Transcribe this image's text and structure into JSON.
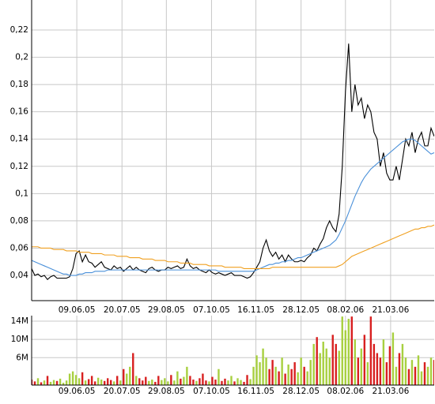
{
  "chart_data": [
    {
      "type": "line",
      "xlim": [
        0,
        127
      ],
      "xticks": [
        {
          "value": 14.25,
          "label": "09.06.05"
        },
        {
          "value": 28.5,
          "label": "20.07.05"
        },
        {
          "value": 42.5,
          "label": "29.08.05"
        },
        {
          "value": 56.75,
          "label": "07.10.05"
        },
        {
          "value": 70.75,
          "label": "16.11.05"
        },
        {
          "value": 85,
          "label": "28.12.05"
        },
        {
          "value": 99,
          "label": "08.02.06"
        },
        {
          "value": 113.25,
          "label": "21.03.06"
        }
      ],
      "ylim": [
        0.0215,
        0.242
      ],
      "yticks": [
        {
          "value": 0.04,
          "label": "0,04"
        },
        {
          "value": 0.06,
          "label": "0,06"
        },
        {
          "value": 0.08,
          "label": "0,08"
        },
        {
          "value": 0.1,
          "label": "0,1"
        },
        {
          "value": 0.12,
          "label": "0,12"
        },
        {
          "value": 0.14,
          "label": "0,14"
        },
        {
          "value": 0.16,
          "label": "0,16"
        },
        {
          "value": 0.18,
          "label": "0,18"
        },
        {
          "value": 0.2,
          "label": "0,2"
        },
        {
          "value": 0.22,
          "label": "0,22"
        }
      ],
      "grid": true,
      "series": [
        {
          "color": "#000000",
          "values": [
            0.045,
            0.04,
            0.041,
            0.039,
            0.04,
            0.037,
            0.039,
            0.04,
            0.038,
            0.038,
            0.038,
            0.038,
            0.039,
            0.045,
            0.056,
            0.058,
            0.05,
            0.055,
            0.05,
            0.049,
            0.046,
            0.048,
            0.05,
            0.046,
            0.045,
            0.044,
            0.047,
            0.045,
            0.046,
            0.043,
            0.045,
            0.047,
            0.044,
            0.046,
            0.044,
            0.043,
            0.042,
            0.045,
            0.046,
            0.044,
            0.043,
            0.044,
            0.044,
            0.046,
            0.045,
            0.046,
            0.047,
            0.045,
            0.046,
            0.052,
            0.047,
            0.045,
            0.046,
            0.044,
            0.043,
            0.042,
            0.044,
            0.042,
            0.041,
            0.042,
            0.041,
            0.04,
            0.041,
            0.042,
            0.04,
            0.04,
            0.04,
            0.039,
            0.038,
            0.039,
            0.042,
            0.046,
            0.05,
            0.06,
            0.066,
            0.058,
            0.054,
            0.057,
            0.052,
            0.055,
            0.05,
            0.055,
            0.052,
            0.05,
            0.05,
            0.051,
            0.05,
            0.053,
            0.055,
            0.06,
            0.058,
            0.063,
            0.067,
            0.075,
            0.08,
            0.075,
            0.072,
            0.085,
            0.12,
            0.175,
            0.21,
            0.16,
            0.18,
            0.165,
            0.17,
            0.155,
            0.165,
            0.16,
            0.145,
            0.14,
            0.12,
            0.13,
            0.115,
            0.11,
            0.11,
            0.12,
            0.11,
            0.125,
            0.14,
            0.135,
            0.145,
            0.13,
            0.14,
            0.145,
            0.135,
            0.135,
            0.148,
            0.142
          ]
        },
        {
          "color": "#4a90d9",
          "values": [
            0.051,
            0.05,
            0.049,
            0.048,
            0.047,
            0.046,
            0.045,
            0.044,
            0.043,
            0.042,
            0.041,
            0.041,
            0.04,
            0.04,
            0.04,
            0.041,
            0.041,
            0.042,
            0.042,
            0.042,
            0.043,
            0.043,
            0.043,
            0.043,
            0.044,
            0.044,
            0.044,
            0.044,
            0.044,
            0.044,
            0.044,
            0.044,
            0.044,
            0.044,
            0.044,
            0.044,
            0.044,
            0.044,
            0.044,
            0.044,
            0.044,
            0.044,
            0.044,
            0.044,
            0.044,
            0.044,
            0.044,
            0.044,
            0.044,
            0.044,
            0.044,
            0.044,
            0.044,
            0.044,
            0.044,
            0.044,
            0.044,
            0.044,
            0.044,
            0.043,
            0.043,
            0.043,
            0.043,
            0.043,
            0.043,
            0.043,
            0.043,
            0.043,
            0.043,
            0.043,
            0.043,
            0.044,
            0.045,
            0.046,
            0.047,
            0.048,
            0.048,
            0.049,
            0.049,
            0.05,
            0.05,
            0.051,
            0.051,
            0.052,
            0.053,
            0.053,
            0.054,
            0.055,
            0.056,
            0.057,
            0.058,
            0.059,
            0.06,
            0.061,
            0.062,
            0.064,
            0.066,
            0.07,
            0.075,
            0.08,
            0.086,
            0.092,
            0.098,
            0.103,
            0.108,
            0.112,
            0.115,
            0.118,
            0.12,
            0.122,
            0.124,
            0.126,
            0.128,
            0.13,
            0.132,
            0.134,
            0.136,
            0.138,
            0.139,
            0.14,
            0.14,
            0.139,
            0.137,
            0.135,
            0.133,
            0.131,
            0.129,
            0.13
          ]
        },
        {
          "color": "#f0a020",
          "values": [
            0.061,
            0.061,
            0.061,
            0.06,
            0.06,
            0.06,
            0.06,
            0.059,
            0.059,
            0.059,
            0.059,
            0.058,
            0.058,
            0.058,
            0.058,
            0.057,
            0.057,
            0.057,
            0.057,
            0.056,
            0.056,
            0.056,
            0.056,
            0.055,
            0.055,
            0.055,
            0.055,
            0.054,
            0.054,
            0.054,
            0.054,
            0.053,
            0.053,
            0.053,
            0.053,
            0.052,
            0.052,
            0.052,
            0.052,
            0.051,
            0.051,
            0.051,
            0.051,
            0.05,
            0.05,
            0.05,
            0.05,
            0.049,
            0.049,
            0.049,
            0.049,
            0.048,
            0.048,
            0.048,
            0.048,
            0.048,
            0.047,
            0.047,
            0.047,
            0.047,
            0.047,
            0.046,
            0.046,
            0.046,
            0.046,
            0.046,
            0.046,
            0.045,
            0.045,
            0.045,
            0.045,
            0.045,
            0.045,
            0.045,
            0.045,
            0.045,
            0.046,
            0.046,
            0.046,
            0.046,
            0.046,
            0.046,
            0.046,
            0.046,
            0.046,
            0.046,
            0.046,
            0.046,
            0.046,
            0.046,
            0.046,
            0.046,
            0.046,
            0.046,
            0.046,
            0.046,
            0.046,
            0.047,
            0.048,
            0.05,
            0.052,
            0.054,
            0.055,
            0.056,
            0.057,
            0.058,
            0.059,
            0.06,
            0.061,
            0.062,
            0.063,
            0.064,
            0.065,
            0.066,
            0.067,
            0.068,
            0.069,
            0.07,
            0.071,
            0.072,
            0.073,
            0.074,
            0.074,
            0.075,
            0.075,
            0.076,
            0.076,
            0.077
          ]
        }
      ]
    },
    {
      "type": "bar",
      "xlim": [
        0,
        127
      ],
      "xticks": [
        {
          "value": 14.25,
          "label": "09.06.05"
        },
        {
          "value": 28.5,
          "label": "20.07.05"
        },
        {
          "value": 42.5,
          "label": "29.08.05"
        },
        {
          "value": 56.75,
          "label": "07.10.05"
        },
        {
          "value": 70.75,
          "label": "16.11.05"
        },
        {
          "value": 85,
          "label": "28.12.05"
        },
        {
          "value": 99,
          "label": "08.02.06"
        },
        {
          "value": 113.25,
          "label": "21.03.06"
        }
      ],
      "ylim": [
        0,
        15.2
      ],
      "yticks": [
        {
          "value": 6,
          "label": "6M"
        },
        {
          "value": 10,
          "label": "10M"
        },
        {
          "value": 14,
          "label": "14M"
        }
      ],
      "grid": true,
      "up_color": "#a8d040",
      "down_color": "#d82020",
      "values": [
        1.2,
        0.8,
        1.5,
        0.6,
        1.0,
        2.0,
        0.7,
        1.1,
        0.9,
        1.4,
        0.5,
        1.0,
        2.5,
        3.0,
        2.2,
        1.5,
        2.8,
        1.0,
        1.3,
        2.0,
        0.8,
        1.6,
        1.2,
        0.9,
        1.5,
        1.1,
        0.8,
        2.0,
        1.0,
        3.5,
        2.5,
        4.0,
        7.0,
        2.0,
        1.5,
        1.0,
        1.8,
        0.9,
        1.2,
        0.7,
        2.0,
        1.1,
        1.5,
        0.8,
        2.2,
        1.0,
        3.0,
        1.4,
        1.8,
        4.0,
        2.0,
        1.2,
        0.9,
        1.5,
        2.5,
        1.0,
        0.8,
        1.8,
        1.2,
        3.5,
        0.9,
        1.4,
        1.0,
        2.0,
        0.8,
        1.5,
        1.1,
        0.7,
        2.2,
        1.3,
        4.0,
        6.5,
        5.0,
        8.0,
        6.0,
        3.5,
        5.5,
        4.0,
        3.0,
        6.0,
        2.5,
        4.5,
        3.5,
        5.0,
        2.8,
        6.0,
        4.0,
        3.0,
        5.5,
        9.0,
        10.5,
        7.0,
        9.5,
        8.0,
        6.0,
        11.0,
        9.0,
        7.5,
        15.0,
        12.0,
        14.5,
        15.0,
        10.0,
        6.0,
        8.0,
        11.0,
        5.0,
        15.0,
        9.0,
        7.0,
        6.0,
        10.0,
        5.0,
        8.5,
        11.5,
        4.0,
        7.0,
        9.0,
        6.0,
        3.5,
        5.5,
        4.0,
        6.5,
        3.0,
        5.0,
        4.0,
        6.0,
        5.5
      ]
    }
  ]
}
